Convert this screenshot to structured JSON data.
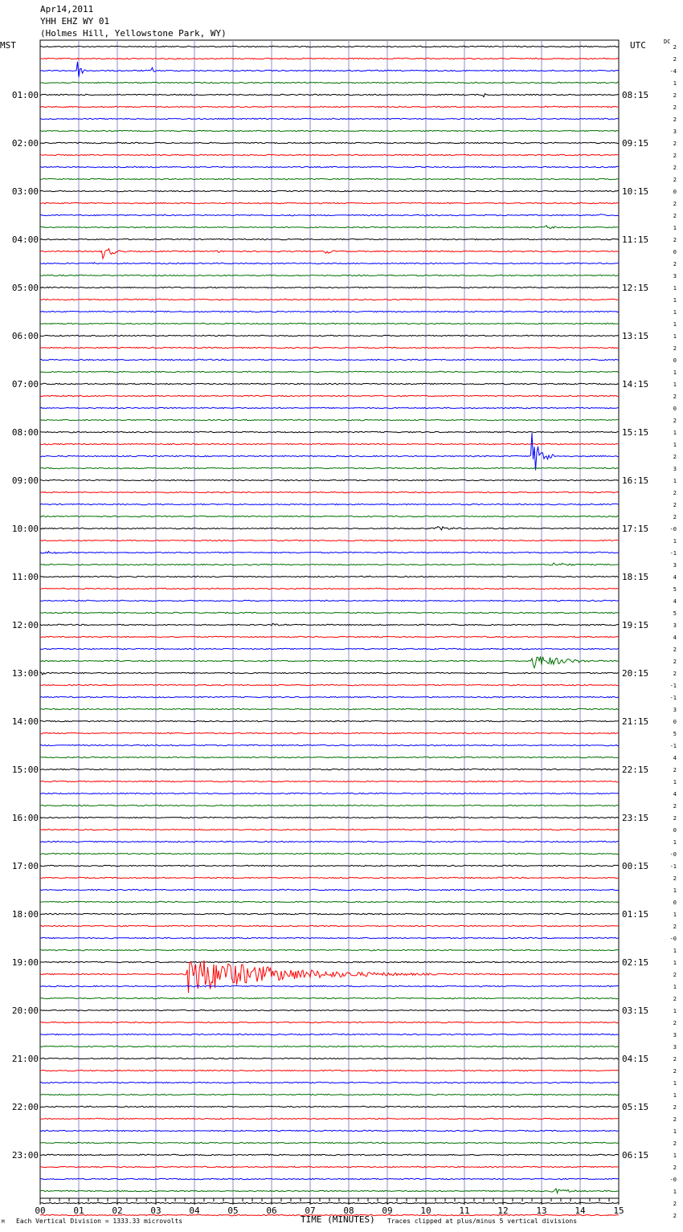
{
  "header": {
    "date": "Apr14,2011",
    "station": "YHH EHZ WY 01",
    "location": "(Holmes Hill, Yellowstone Park, WY)"
  },
  "left_zone": "MST",
  "right_zone": "UTC",
  "dc_label": "DC",
  "footer": {
    "scale_note": "Each Vertical Division = 1333.33 microvolts",
    "xlabel": "TIME (MINUTES)",
    "clip_note": "Traces clipped at plus/minus 5 vertical divisions",
    "corner_mark": "M"
  },
  "chart_data": {
    "type": "line",
    "xlabel": "TIME (MINUTES)",
    "x_ticks": [
      "00",
      "01",
      "02",
      "03",
      "04",
      "05",
      "06",
      "07",
      "08",
      "09",
      "10",
      "11",
      "12",
      "13",
      "14",
      "15"
    ],
    "xlim": [
      0,
      15
    ],
    "rows_per_hour": 4,
    "row_colors": [
      "#000000",
      "#ff0000",
      "#0000ff",
      "#007000"
    ],
    "grid_color": "#8c8cc8",
    "left_hour_labels": [
      "01:00",
      "02:00",
      "03:00",
      "04:00",
      "05:00",
      "06:00",
      "07:00",
      "08:00",
      "09:00",
      "10:00",
      "11:00",
      "12:00",
      "13:00",
      "14:00",
      "15:00",
      "16:00",
      "17:00",
      "18:00",
      "19:00",
      "20:00",
      "21:00",
      "22:00",
      "23:00"
    ],
    "right_hour_labels": [
      "08:15",
      "09:15",
      "10:15",
      "11:15",
      "12:15",
      "13:15",
      "14:15",
      "15:15",
      "16:15",
      "17:15",
      "18:15",
      "19:15",
      "20:15",
      "21:15",
      "22:15",
      "23:15",
      "00:15",
      "01:15",
      "02:15",
      "03:15",
      "04:15",
      "05:15",
      "06:15"
    ],
    "dc_offsets": [
      "2",
      "2",
      "-4",
      "1",
      "2",
      "2",
      "2",
      "3",
      "2",
      "2",
      "2",
      "2",
      "0",
      "2",
      "2",
      "1",
      "2",
      "0",
      "2",
      "3",
      "1",
      "1",
      "1",
      "1",
      "1",
      "2",
      "0",
      "1",
      "1",
      "2",
      "0",
      "2",
      "1",
      "1",
      "2",
      "3",
      "1",
      "2",
      "2",
      "2",
      "-0",
      "1",
      "-1",
      "3",
      "4",
      "5",
      "4",
      "5",
      "3",
      "4",
      "2",
      "2",
      "2",
      "-1",
      "-1",
      "3",
      "0",
      "5",
      "-1",
      "4",
      "2",
      "1",
      "4",
      "2",
      "2",
      "0",
      "1",
      "-0",
      "-1",
      "2",
      "1",
      "0",
      "1",
      "2",
      "-0",
      "1",
      "1",
      "2",
      "1",
      "2",
      "1",
      "2",
      "3",
      "3",
      "2",
      "2",
      "1",
      "1",
      "2",
      "2",
      "1",
      "2",
      "1",
      "2",
      "-0",
      "1",
      "2",
      "2"
    ],
    "events": [
      {
        "row": 2,
        "minute": 0.95,
        "amp": 16,
        "dur": 0.3
      },
      {
        "row": 2,
        "minute": 2.9,
        "amp": 6,
        "dur": 0.15
      },
      {
        "row": 4,
        "minute": 11.5,
        "amp": 5,
        "dur": 0.1
      },
      {
        "row": 17,
        "minute": 1.6,
        "amp": 10,
        "dur": 0.8
      },
      {
        "row": 17,
        "minute": 7.4,
        "amp": 4,
        "dur": 0.5
      },
      {
        "row": 17,
        "minute": 4.6,
        "amp": 2,
        "dur": 0.4
      },
      {
        "row": 18,
        "minute": 1.4,
        "amp": 2,
        "dur": 0.3
      },
      {
        "row": 15,
        "minute": 13.1,
        "amp": 3,
        "dur": 0.7
      },
      {
        "row": 14,
        "minute": 14.5,
        "amp": 2,
        "dur": 0.5
      },
      {
        "row": 34,
        "minute": 12.75,
        "amp": 30,
        "dur": 0.7
      },
      {
        "row": 40,
        "minute": 10.3,
        "amp": 3,
        "dur": 1.6
      },
      {
        "row": 42,
        "minute": 0.1,
        "amp": 3,
        "dur": 1.2
      },
      {
        "row": 43,
        "minute": 13.3,
        "amp": 3,
        "dur": 1.6
      },
      {
        "row": 48,
        "minute": 6.0,
        "amp": 2,
        "dur": 0.8
      },
      {
        "row": 51,
        "minute": 12.75,
        "amp": 10,
        "dur": 2.3
      },
      {
        "row": 52,
        "minute": 0.0,
        "amp": 3,
        "dur": 1.0
      },
      {
        "row": 77,
        "minute": 3.8,
        "amp": 26,
        "dur": 6.5
      },
      {
        "row": 87,
        "minute": 0.0,
        "amp": 1,
        "dur": 0.1
      },
      {
        "row": 95,
        "minute": 13.3,
        "amp": 4,
        "dur": 1.7
      }
    ]
  }
}
